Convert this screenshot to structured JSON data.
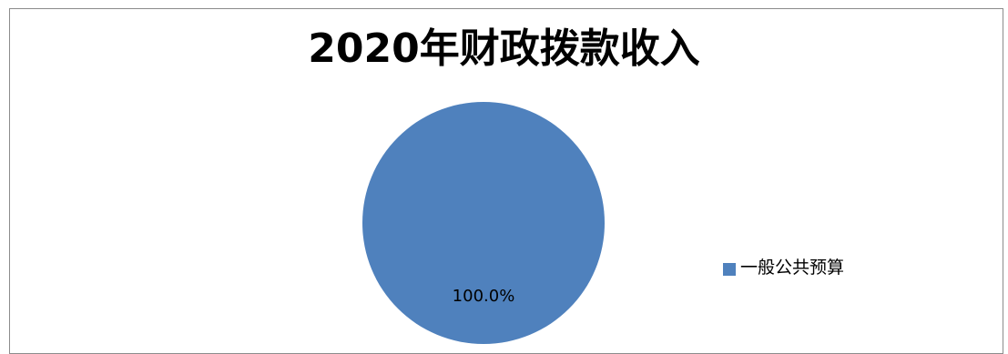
{
  "chart_data": {
    "type": "pie",
    "title": "2020年财政拨款收入",
    "categories": [
      "一般公共预算"
    ],
    "values": [
      100.0
    ],
    "data_labels": [
      "100.0%"
    ],
    "colors": [
      "#4f81bd"
    ],
    "legend_position": "right"
  }
}
